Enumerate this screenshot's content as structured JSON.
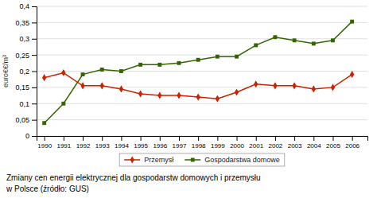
{
  "chart_data": {
    "type": "line",
    "y_label": "euro€€/m³",
    "x": [
      1990,
      1991,
      1992,
      1993,
      1994,
      1995,
      1996,
      1997,
      1998,
      1999,
      2000,
      2001,
      2002,
      2003,
      2004,
      2005,
      2006
    ],
    "series": [
      {
        "name": "Przemysł",
        "color": "#cc2200",
        "marker": "diamond",
        "values": [
          0.18,
          0.195,
          0.155,
          0.155,
          0.145,
          0.13,
          0.125,
          0.125,
          0.12,
          0.115,
          0.135,
          0.16,
          0.155,
          0.155,
          0.145,
          0.15,
          0.19
        ]
      },
      {
        "name": "Gospodarstwa domowe",
        "color": "#336600",
        "marker": "square",
        "values": [
          0.04,
          0.1,
          0.19,
          0.205,
          0.2,
          0.22,
          0.22,
          0.225,
          0.235,
          0.245,
          0.245,
          0.28,
          0.305,
          0.295,
          0.285,
          0.295,
          0.353
        ]
      }
    ],
    "xlim": [
      1989.6,
      2006.8
    ],
    "xticks": [
      1990,
      1991,
      1992,
      1993,
      1994,
      1995,
      1996,
      1997,
      1998,
      1999,
      2000,
      2001,
      2002,
      2003,
      2004,
      2005,
      2006
    ],
    "ylim": [
      0,
      0.4
    ],
    "yticks": [
      0,
      {
        "value": 0.05,
        "label": "0,05"
      },
      {
        "value": 0.1,
        "label": "0,1"
      },
      {
        "value": 0.15,
        "label": "0,15"
      },
      {
        "value": 0.2,
        "label": "0,2"
      },
      {
        "value": 0.25,
        "label": "0,25"
      },
      {
        "value": 0.3,
        "label": "0,3"
      },
      {
        "value": 0.35,
        "label": "0,35"
      },
      {
        "value": 0.4,
        "label": "0,4"
      }
    ],
    "grid": true,
    "legend": "bottom",
    "annotations": [
      "Zmiany cen energii elektrycznej dla gospodarstw domowych i przemysłu",
      "w Polsce (źródło: GUS)"
    ]
  }
}
